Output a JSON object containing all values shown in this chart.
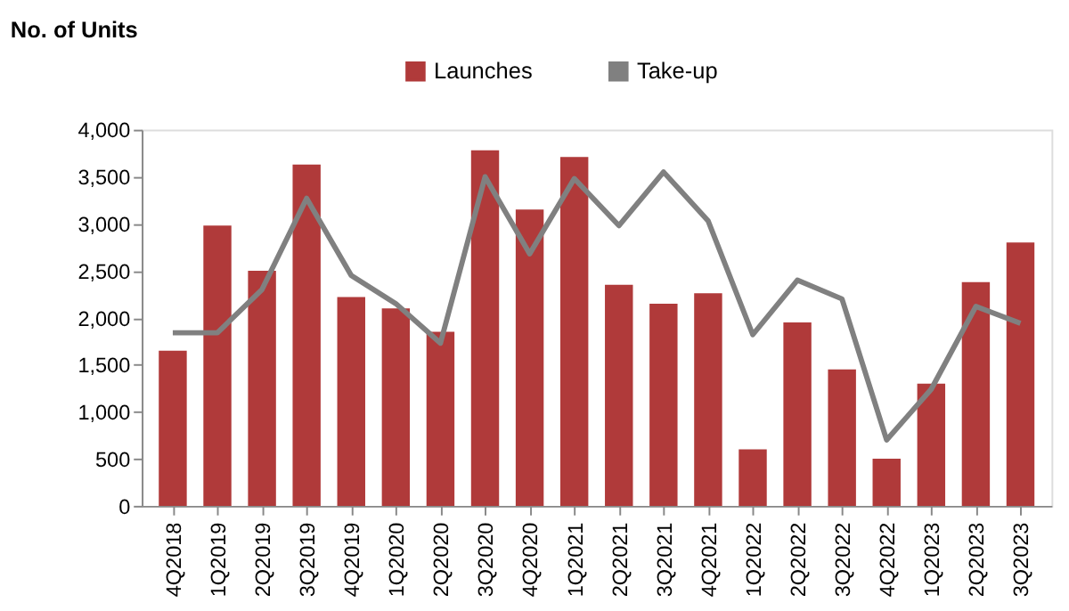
{
  "chart_data": {
    "type": "bar",
    "ylabel": "No. of Units",
    "categories": [
      "4Q2018",
      "1Q2019",
      "2Q2019",
      "3Q2019",
      "4Q2019",
      "1Q2020",
      "2Q2020",
      "3Q2020",
      "4Q2020",
      "1Q2021",
      "2Q2021",
      "3Q2021",
      "4Q2021",
      "1Q2022",
      "2Q2022",
      "3Q2022",
      "4Q2022",
      "1Q2023",
      "2Q2023",
      "3Q2023"
    ],
    "series": [
      {
        "name": "Launches",
        "type": "bar",
        "color": "#b03a3a",
        "values": [
          1650,
          2980,
          2500,
          3630,
          2220,
          2100,
          1850,
          3780,
          3150,
          3710,
          2350,
          2150,
          2260,
          600,
          1950,
          1450,
          500,
          1300,
          2380,
          2800
        ]
      },
      {
        "name": "Take-up",
        "type": "line",
        "color": "#808080",
        "values": [
          1840,
          1840,
          2300,
          3270,
          2450,
          2150,
          1730,
          3500,
          2680,
          3480,
          2980,
          3550,
          3030,
          1820,
          2400,
          2200,
          700,
          1240,
          2120,
          1940
        ]
      }
    ],
    "ylim": [
      0,
      4000
    ],
    "yticks": [
      0,
      500,
      {
        "value": 1000,
        "label": "1,000"
      },
      {
        "value": 1500,
        "label": "1,500"
      },
      {
        "value": 2000,
        "label": "2,000"
      },
      {
        "value": 2500,
        "label": "2,500"
      },
      {
        "value": 3000,
        "label": "3,000"
      },
      {
        "value": 3500,
        "label": "3,500"
      },
      {
        "value": 4000,
        "label": "4,000"
      }
    ],
    "grid": false,
    "legend": "top"
  }
}
